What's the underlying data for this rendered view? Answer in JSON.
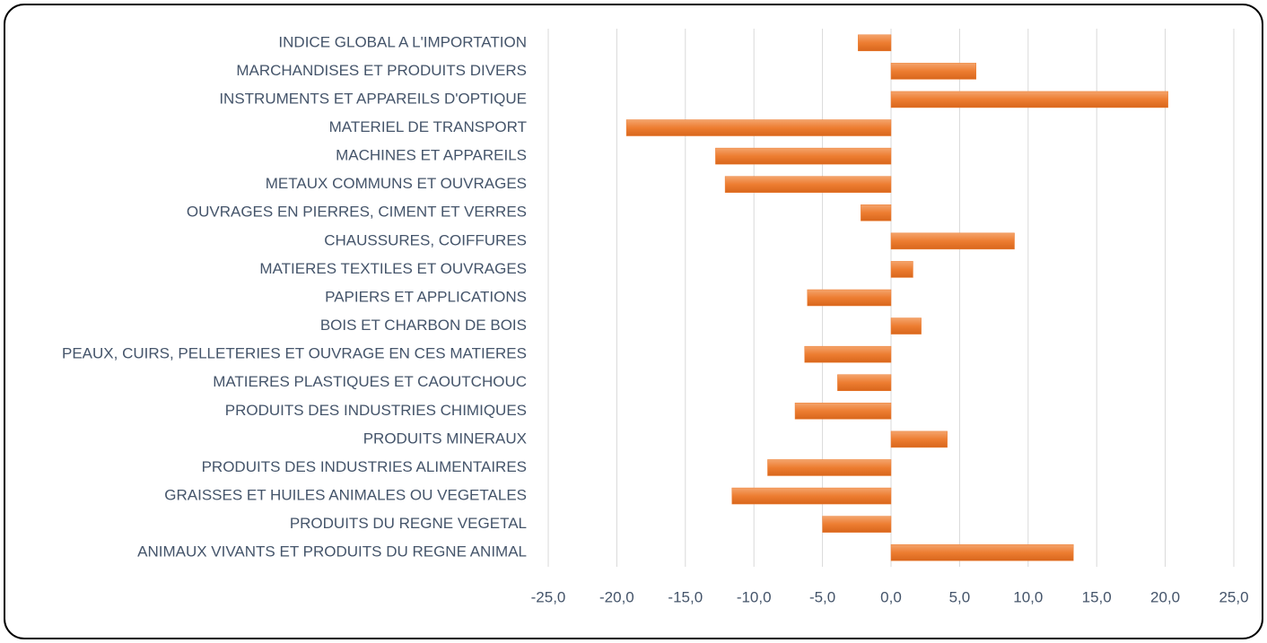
{
  "chart_data": {
    "type": "barh",
    "categories": [
      "INDICE GLOBAL A L'IMPORTATION",
      "MARCHANDISES ET PRODUITS DIVERS",
      "INSTRUMENTS ET APPAREILS D'OPTIQUE",
      "MATERIEL DE TRANSPORT",
      "MACHINES ET APPAREILS",
      "METAUX COMMUNS ET OUVRAGES",
      "OUVRAGES EN PIERRES, CIMENT ET VERRES",
      "CHAUSSURES, COIFFURES",
      "MATIERES TEXTILES ET OUVRAGES",
      "PAPIERS ET APPLICATIONS",
      "BOIS ET CHARBON DE BOIS",
      "PEAUX, CUIRS, PELLETERIES ET OUVRAGE EN CES MATIERES",
      "MATIERES PLASTIQUES ET CAOUTCHOUC",
      "PRODUITS DES INDUSTRIES CHIMIQUES",
      "PRODUITS MINERAUX",
      "PRODUITS DES INDUSTRIES ALIMENTAIRES",
      "GRAISSES ET HUILES ANIMALES OU VEGETALES",
      "PRODUITS DU REGNE VEGETAL",
      "ANIMAUX VIVANTS ET PRODUITS DU REGNE ANIMAL"
    ],
    "values": [
      -2.4,
      6.2,
      20.2,
      -19.3,
      -12.8,
      -12.1,
      -2.2,
      9.0,
      1.6,
      -6.1,
      2.2,
      -6.3,
      -3.9,
      -7.0,
      4.1,
      -9.0,
      -11.6,
      -5.0,
      13.3
    ],
    "color": "#ed7d31",
    "xlim": [
      -25,
      25
    ],
    "xticks": [
      {
        "value": -25,
        "label": "-25,0"
      },
      {
        "value": -20,
        "label": "-20,0"
      },
      {
        "value": -15,
        "label": "-15,0"
      },
      {
        "value": -10,
        "label": "-10,0"
      },
      {
        "value": -5,
        "label": "-5,0"
      },
      {
        "value": 0,
        "label": "0,0"
      },
      {
        "value": 5,
        "label": "5,0"
      },
      {
        "value": 10,
        "label": "10,0"
      },
      {
        "value": 15,
        "label": "15,0"
      },
      {
        "value": 20,
        "label": "20,0"
      },
      {
        "value": 25,
        "label": "25,0"
      }
    ],
    "grid": true
  }
}
